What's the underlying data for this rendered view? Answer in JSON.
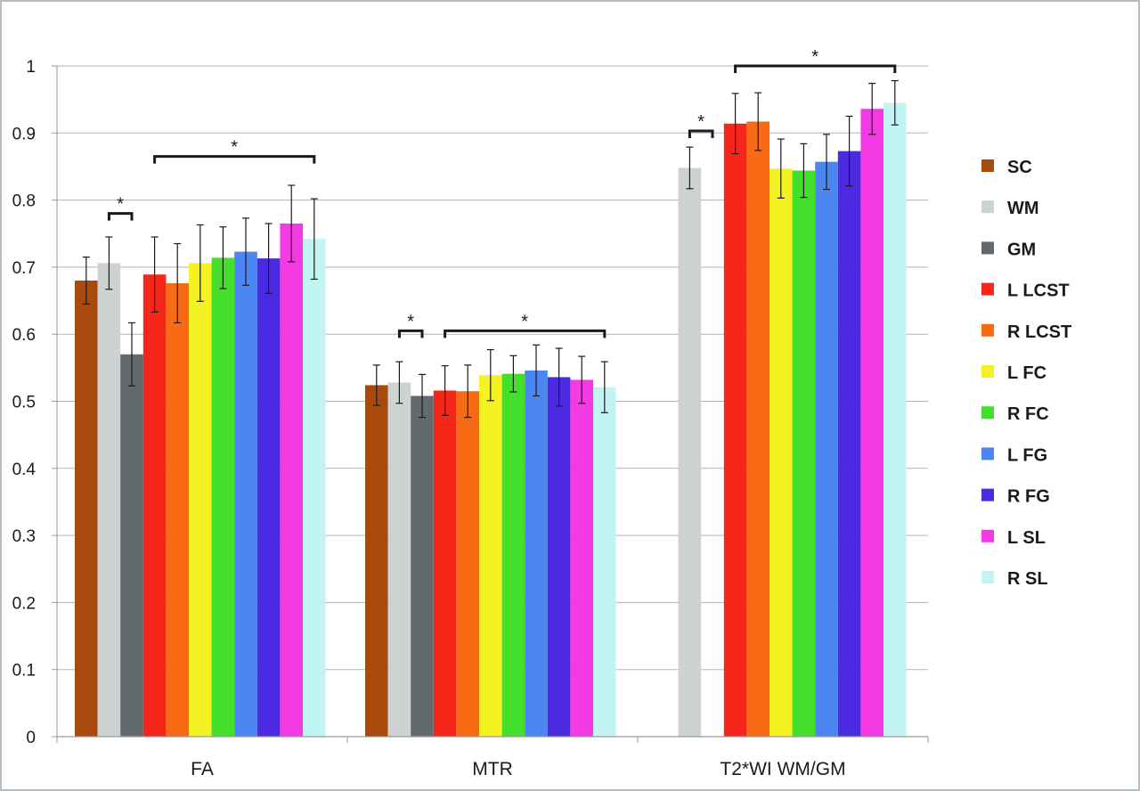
{
  "chart_data": {
    "type": "bar",
    "categories": [
      "FA",
      "MTR",
      "T2*WI WM/GM"
    ],
    "ylim": [
      0,
      1
    ],
    "yticks": [
      "0",
      "0.1",
      "0.2",
      "0.3",
      "0.4",
      "0.5",
      "0.6",
      "0.7",
      "0.8",
      "0.9",
      "1"
    ],
    "grid": true,
    "legend_position": "right",
    "series": [
      {
        "name": "SC",
        "color": "#a84a0e",
        "values": [
          0.68,
          0.524,
          null
        ],
        "errors": [
          0.035,
          0.03,
          null
        ]
      },
      {
        "name": "WM",
        "color": "#cfd2d2",
        "values": [
          0.706,
          0.528,
          0.848
        ],
        "errors": [
          0.039,
          0.031,
          0.031
        ]
      },
      {
        "name": "GM",
        "color": "#626a6d",
        "values": [
          0.57,
          0.508,
          null
        ],
        "errors": [
          0.047,
          0.032,
          null
        ]
      },
      {
        "name": "L LCST",
        "color": "#f5261a",
        "values": [
          0.689,
          0.516,
          0.914
        ],
        "errors": [
          0.056,
          0.037,
          0.045
        ]
      },
      {
        "name": "R LCST",
        "color": "#f96a14",
        "values": [
          0.676,
          0.515,
          0.917
        ],
        "errors": [
          0.059,
          0.039,
          0.043
        ]
      },
      {
        "name": "L FC",
        "color": "#f4f222",
        "values": [
          0.706,
          0.539,
          0.847
        ],
        "errors": [
          0.057,
          0.038,
          0.044
        ]
      },
      {
        "name": "R FC",
        "color": "#44df2a",
        "values": [
          0.714,
          0.541,
          0.844
        ],
        "errors": [
          0.046,
          0.027,
          0.04
        ]
      },
      {
        "name": "L FG",
        "color": "#4b86f2",
        "values": [
          0.723,
          0.546,
          0.857
        ],
        "errors": [
          0.05,
          0.038,
          0.041
        ]
      },
      {
        "name": "R FG",
        "color": "#4b2ae2",
        "values": [
          0.713,
          0.536,
          0.873
        ],
        "errors": [
          0.052,
          0.043,
          0.052
        ]
      },
      {
        "name": "L SL",
        "color": "#f43ae2",
        "values": [
          0.765,
          0.532,
          0.936
        ],
        "errors": [
          0.057,
          0.035,
          0.038
        ]
      },
      {
        "name": "R SL",
        "color": "#c2f4f4",
        "values": [
          0.742,
          0.521,
          0.945
        ],
        "errors": [
          0.06,
          0.038,
          0.033
        ]
      }
    ],
    "annotations": [
      {
        "text": "*",
        "category": 0,
        "from_series": 1,
        "to_series": 2,
        "y": 0.78
      },
      {
        "text": "*",
        "category": 0,
        "from_series": 3,
        "to_series": 10,
        "y": 0.865
      },
      {
        "text": "*",
        "category": 1,
        "from_series": 1,
        "to_series": 2,
        "y": 0.605
      },
      {
        "text": "*",
        "category": 1,
        "from_series": 3,
        "to_series": 10,
        "y": 0.605
      },
      {
        "text": "*",
        "category": 2,
        "from_series": 1,
        "to_series": 2,
        "y": 0.903
      },
      {
        "text": "*",
        "category": 2,
        "from_series": 3,
        "to_series": 10,
        "y": 1.0
      }
    ]
  }
}
